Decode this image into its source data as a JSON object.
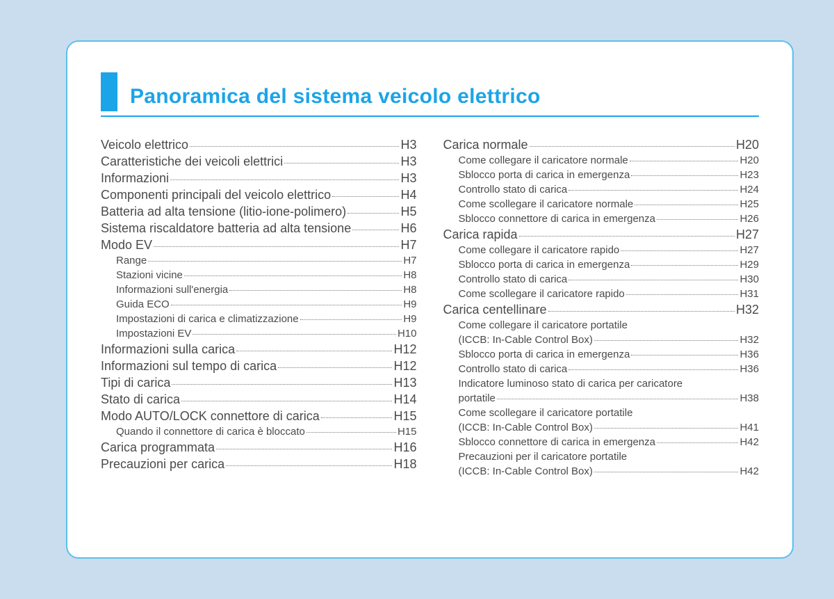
{
  "title": "Panoramica del sistema veicolo elettrico",
  "colors": {
    "page_bg": "#c9ddef",
    "card_bg": "#ffffff",
    "card_border": "#5bc0eb",
    "accent": "#1ca4e8",
    "text": "#4a4a4a",
    "dot": "#7a7a7a"
  },
  "left": [
    {
      "l": 1,
      "t": "Veicolo elettrico",
      "p": "H3"
    },
    {
      "l": 1,
      "t": "Caratteristiche dei veicoli elettrici",
      "p": "H3"
    },
    {
      "l": 1,
      "t": "Informazioni",
      "p": "H3"
    },
    {
      "l": 1,
      "t": "Componenti principali del veicolo elettrico",
      "p": "H4"
    },
    {
      "l": 1,
      "t": "Batteria ad alta tensione (litio-ione-polimero)",
      "p": "H5",
      "tight": true
    },
    {
      "l": 1,
      "t": "Sistema riscaldatore batteria ad alta tensione",
      "p": "H6",
      "tight": true
    },
    {
      "l": 1,
      "t": "Modo EV",
      "p": "H7"
    },
    {
      "l": 2,
      "t": "Range",
      "p": "H7"
    },
    {
      "l": 2,
      "t": "Stazioni vicine",
      "p": "H8"
    },
    {
      "l": 2,
      "t": "Informazioni sull'energia",
      "p": "H8"
    },
    {
      "l": 2,
      "t": "Guida ECO",
      "p": "H9"
    },
    {
      "l": 2,
      "t": "Impostazioni di carica e climatizzazione",
      "p": "H9"
    },
    {
      "l": 2,
      "t": "Impostazioni EV",
      "p": "H10"
    },
    {
      "l": 1,
      "t": "Informazioni sulla carica",
      "p": "H12"
    },
    {
      "l": 1,
      "t": "Informazioni sul tempo di carica",
      "p": "H12"
    },
    {
      "l": 1,
      "t": "Tipi di carica",
      "p": "H13"
    },
    {
      "l": 1,
      "t": "Stato di carica",
      "p": "H14"
    },
    {
      "l": 1,
      "t": "Modo AUTO/LOCK connettore di carica",
      "p": "H15"
    },
    {
      "l": 2,
      "t": "Quando il connettore di carica è bloccato",
      "p": "H15"
    },
    {
      "l": 1,
      "t": "Carica programmata",
      "p": "H16"
    },
    {
      "l": 1,
      "t": "Precauzioni per carica",
      "p": "H18"
    }
  ],
  "right": [
    {
      "l": 1,
      "t": "Carica normale",
      "p": "H20"
    },
    {
      "l": 2,
      "t": "Come collegare il caricatore normale",
      "p": "H20"
    },
    {
      "l": 2,
      "t": "Sblocco porta di carica in emergenza",
      "p": "H23"
    },
    {
      "l": 2,
      "t": "Controllo stato di carica",
      "p": "H24"
    },
    {
      "l": 2,
      "t": "Come scollegare il caricatore normale",
      "p": "H25"
    },
    {
      "l": 2,
      "t": "Sblocco connettore di carica in emergenza",
      "p": "H26"
    },
    {
      "l": 1,
      "t": "Carica rapida",
      "p": "H27"
    },
    {
      "l": 2,
      "t": "Come collegare il caricatore rapido",
      "p": "H27"
    },
    {
      "l": 2,
      "t": "Sblocco porta di carica in emergenza",
      "p": "H29"
    },
    {
      "l": 2,
      "t": "Controllo stato di carica",
      "p": "H30"
    },
    {
      "l": 2,
      "t": "Come scollegare il caricatore rapido",
      "p": "H31"
    },
    {
      "l": 1,
      "t": "Carica centellinare",
      "p": "H32"
    },
    {
      "l": 2,
      "t1": "Come collegare il caricatore portatile",
      "t2": "(ICCB: In-Cable Control Box)",
      "p": "H32",
      "multi": true
    },
    {
      "l": 2,
      "t": "Sblocco porta di carica in emergenza",
      "p": "H36"
    },
    {
      "l": 2,
      "t": "Controllo stato di carica",
      "p": "H36"
    },
    {
      "l": 2,
      "t1": "Indicatore luminoso stato di carica per caricatore",
      "t2": "portatile",
      "p": "H38",
      "multi": true
    },
    {
      "l": 2,
      "t1": "Come scollegare il caricatore portatile",
      "t2": "(ICCB: In-Cable Control Box)",
      "p": "H41",
      "multi": true
    },
    {
      "l": 2,
      "t": "Sblocco connettore di carica in emergenza",
      "p": "H42"
    },
    {
      "l": 2,
      "t1": "Precauzioni per il caricatore portatile",
      "t2": "(ICCB: In-Cable Control Box)",
      "p": "H42",
      "multi": true
    }
  ]
}
